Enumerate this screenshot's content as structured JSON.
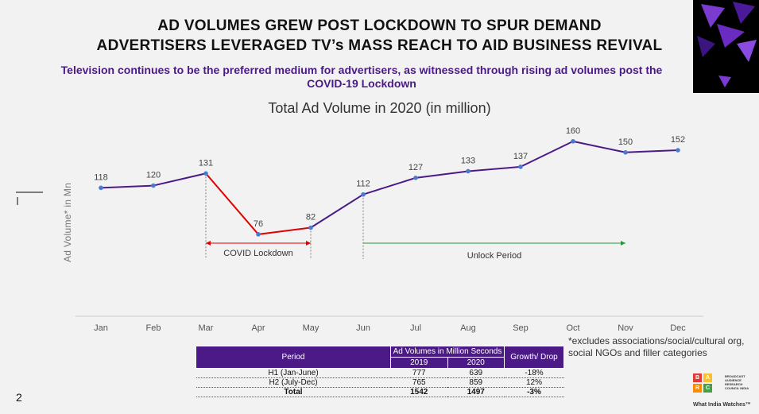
{
  "header": {
    "title_line1": "AD VOLUMES GREW POST LOCKDOWN TO SPUR DEMAND",
    "title_line2": "ADVERTISERS LEVERAGED TV’s MASS REACH TO AID BUSINESS REVIVAL",
    "subtitle": "Television continues to be the preferred medium for advertisers, as witnessed through rising ad volumes post the COVID-19 Lockdown"
  },
  "chart_data": {
    "type": "line",
    "title": "Total Ad Volume in 2020 (in million)",
    "ylabel": "Ad Volume* in Mn",
    "xlabel": "",
    "categories": [
      "Jan",
      "Feb",
      "Mar",
      "Apr",
      "May",
      "Jun",
      "Jul",
      "Aug",
      "Sep",
      "Oct",
      "Nov",
      "Dec"
    ],
    "values": [
      118,
      120,
      131,
      76,
      82,
      112,
      127,
      133,
      137,
      160,
      150,
      152
    ],
    "ylim": [
      40,
      180
    ],
    "grid": false,
    "colors": {
      "line": "#4b1a86",
      "lockdown": "#e00000",
      "unlock": "#1a9e3a",
      "marker": "#4a7bd0"
    },
    "annotations": [
      {
        "text": "COVID Lockdown",
        "from": "Mar",
        "to": "May"
      },
      {
        "text": "Unlock Period",
        "from": "Jun",
        "to": "Nov"
      }
    ]
  },
  "table": {
    "col_period": "Period",
    "col_volumes": "Ad Volumes in Million Seconds",
    "col_growth": "Growth/ Drop",
    "year1": "2019",
    "year2": "2020",
    "rows": [
      {
        "period": "H1 (Jan-June)",
        "v2019": "777",
        "v2020": "639",
        "growth": "-18%"
      },
      {
        "period": "H2 (July-Dec)",
        "v2019": "765",
        "v2020": "859",
        "growth": "12%"
      }
    ],
    "total": {
      "period": "Total",
      "v2019": "1542",
      "v2020": "1497",
      "growth": "-3%"
    }
  },
  "footnote": "*excludes associations/social/cultural org, social NGOs and filler categories",
  "page_number": "2",
  "logo": {
    "letters": [
      "B",
      "A",
      "R",
      "C"
    ],
    "name": "BROADCAST AUDIENCE RESEARCH COUNCIL INDIA",
    "tagline": "What India Watches™"
  }
}
